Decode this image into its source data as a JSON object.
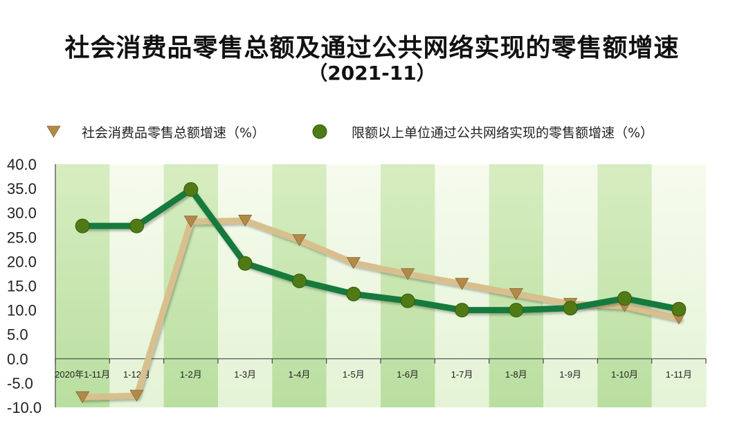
{
  "title": "社会消费品零售总额及通过公共网络实现的零售额增速",
  "subtitle": "（2021-11）",
  "chart_data": {
    "type": "line",
    "categories": [
      "2020年1-11月",
      "1-12月",
      "1-2月",
      "1-3月",
      "1-4月",
      "1-5月",
      "1-6月",
      "1-7月",
      "1-8月",
      "1-9月",
      "1-10月",
      "1-11月"
    ],
    "ylim": [
      -10,
      40
    ],
    "yticks": [
      "40.0",
      "35.0",
      "30.0",
      "25.0",
      "20.0",
      "15.0",
      "10.0",
      "5.0",
      "0.0",
      "-5.0",
      "-10.0"
    ],
    "legend_position": "top",
    "series": [
      {
        "name": "社会消费品零售总额增速（%）",
        "marker": "triangle-down",
        "color": "#d8c08e",
        "marker_color": "#b18a4a",
        "values": [
          -7.9,
          -7.6,
          28.2,
          28.4,
          24.4,
          19.7,
          17.4,
          15.4,
          13.3,
          11.3,
          10.8,
          8.3
        ]
      },
      {
        "name": "限额以上单位通过公共网络实现的零售额增速（%）",
        "marker": "circle",
        "color": "#127a3c",
        "marker_color": "#4f7a16",
        "values": [
          27.3,
          27.3,
          34.8,
          19.6,
          16.0,
          13.3,
          11.9,
          10.0,
          10.0,
          10.4,
          12.4,
          10.2
        ]
      }
    ]
  }
}
